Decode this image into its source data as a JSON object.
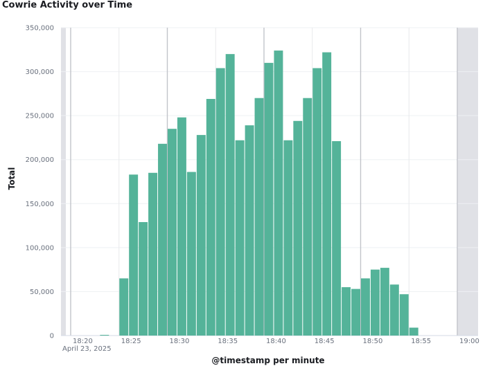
{
  "chart_data": {
    "type": "bar",
    "title": "Cowrie Activity over Time",
    "xlabel": "@timestamp per minute",
    "ylabel": "Total",
    "date_label": "April 23, 2025",
    "ylim": [
      0,
      350000
    ],
    "y_ticks": [
      0,
      50000,
      100000,
      150000,
      200000,
      250000,
      300000,
      350000
    ],
    "y_tick_labels": [
      "0",
      "50,000",
      "100,000",
      "150,000",
      "200,000",
      "250,000",
      "300,000",
      "350,000"
    ],
    "x_ticks": [
      "18:20",
      "18:25",
      "18:30",
      "18:35",
      "18:40",
      "18:45",
      "18:50",
      "18:55",
      "19:00"
    ],
    "x_tick_minutes": [
      0,
      5,
      10,
      15,
      20,
      25,
      30,
      35,
      40
    ],
    "x_range_minutes": [
      -0.5,
      40
    ],
    "categories": [
      "18:20",
      "18:21",
      "18:22",
      "18:23",
      "18:24",
      "18:25",
      "18:26",
      "18:27",
      "18:28",
      "18:29",
      "18:30",
      "18:31",
      "18:32",
      "18:33",
      "18:34",
      "18:35",
      "18:36",
      "18:37",
      "18:38",
      "18:39",
      "18:40",
      "18:41",
      "18:42",
      "18:43",
      "18:44",
      "18:45",
      "18:46",
      "18:47",
      "18:48",
      "18:49",
      "18:50",
      "18:51",
      "18:52",
      "18:53",
      "18:54",
      "18:55",
      "18:56",
      "18:57",
      "18:58",
      "18:59"
    ],
    "values": [
      0,
      0,
      0,
      800,
      0,
      65000,
      183000,
      129000,
      185000,
      218000,
      235000,
      248000,
      186000,
      228000,
      269000,
      304000,
      320000,
      222000,
      239000,
      270000,
      310000,
      324000,
      222000,
      244000,
      270000,
      304000,
      322000,
      221000,
      55000,
      53000,
      65000,
      75000,
      77000,
      58000,
      47000,
      9000,
      0,
      0,
      0,
      0
    ],
    "bar_color": "#54b399",
    "grid": true
  }
}
